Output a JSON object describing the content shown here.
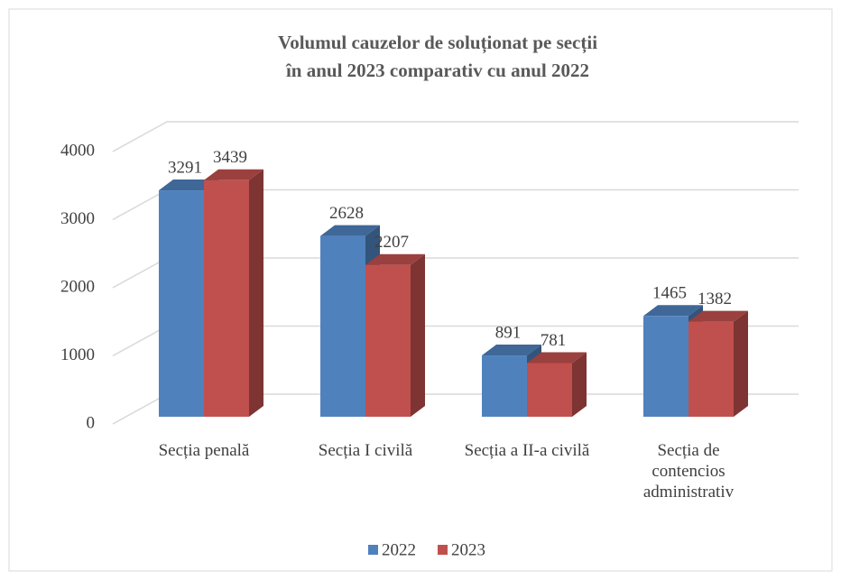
{
  "chart_data": {
    "type": "bar3d",
    "title": "Volumul cauzelor de soluționat pe secții\nîn anul 2023 comparativ cu anul 2022",
    "categories": [
      "Secția penală",
      "Secția I civilă",
      "Secția a II-a civilă",
      "Secția de contencios administrativ"
    ],
    "series": [
      {
        "name": "2022",
        "color": "#4f81bd",
        "values": [
          3291,
          2628,
          891,
          1465
        ]
      },
      {
        "name": "2023",
        "color": "#c0504d",
        "values": [
          3439,
          2207,
          781,
          1382
        ]
      }
    ],
    "ylim": [
      0,
      4000
    ],
    "yticks": [
      0,
      1000,
      2000,
      3000,
      4000
    ],
    "grid": true,
    "legend": "bottom"
  }
}
